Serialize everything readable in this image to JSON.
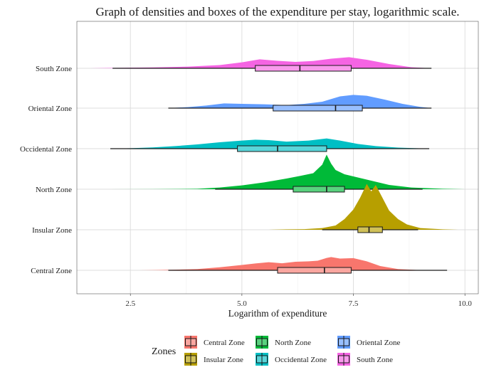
{
  "chart_data": {
    "type": "density-boxplot",
    "title": "Graph of densities and boxes of the expenditure  per stay, logarithmic scale.",
    "xlabel": "Logarithm of expenditure",
    "ylabel": "",
    "xlim": [
      1.3,
      10.3
    ],
    "x_ticks": [
      2.5,
      5.0,
      7.5,
      10.0
    ],
    "x_tick_labels": [
      "2.5",
      "5.0",
      "7.5",
      "10.0"
    ],
    "grid": true,
    "legend": {
      "title": "Zones",
      "position": "bottom",
      "entries": [
        "Central Zone",
        "Insular Zone",
        "North Zone",
        "Occidental Zone",
        "Oriental Zone",
        "South Zone"
      ]
    },
    "categories": [
      "Central Zone",
      "Insular Zone",
      "North Zone",
      "Occidental Zone",
      "Oriental Zone",
      "South Zone"
    ],
    "series": [
      {
        "name": "Central Zone",
        "color": "#F8766D",
        "box": {
          "whisker_low": 3.35,
          "q1": 5.8,
          "median": 6.85,
          "q3": 7.45,
          "whisker_high": 9.6
        },
        "density": [
          [
            2.7,
            0.0
          ],
          [
            3.0,
            0.01
          ],
          [
            3.5,
            0.03
          ],
          [
            4.0,
            0.06
          ],
          [
            4.5,
            0.14
          ],
          [
            5.0,
            0.25
          ],
          [
            5.3,
            0.32
          ],
          [
            5.6,
            0.38
          ],
          [
            5.9,
            0.33
          ],
          [
            6.2,
            0.4
          ],
          [
            6.5,
            0.42
          ],
          [
            6.7,
            0.45
          ],
          [
            6.9,
            0.58
          ],
          [
            7.0,
            0.62
          ],
          [
            7.2,
            0.55
          ],
          [
            7.5,
            0.57
          ],
          [
            7.8,
            0.42
          ],
          [
            8.1,
            0.2
          ],
          [
            8.5,
            0.06
          ],
          [
            9.0,
            0.01
          ],
          [
            9.6,
            0.0
          ]
        ]
      },
      {
        "name": "Insular Zone",
        "color": "#B79F00",
        "box": {
          "whisker_low": 6.8,
          "q1": 7.6,
          "median": 7.85,
          "q3": 8.15,
          "whisker_high": 8.95
        },
        "density": [
          [
            5.6,
            0.0
          ],
          [
            6.0,
            0.02
          ],
          [
            6.4,
            0.03
          ],
          [
            6.8,
            0.08
          ],
          [
            7.1,
            0.2
          ],
          [
            7.3,
            0.5
          ],
          [
            7.5,
            0.95
          ],
          [
            7.65,
            1.5
          ],
          [
            7.8,
            2.15
          ],
          [
            7.9,
            1.8
          ],
          [
            8.0,
            2.1
          ],
          [
            8.15,
            1.5
          ],
          [
            8.3,
            0.9
          ],
          [
            8.5,
            0.5
          ],
          [
            8.7,
            0.25
          ],
          [
            9.0,
            0.08
          ],
          [
            9.5,
            0.02
          ],
          [
            9.85,
            0.0
          ]
        ]
      },
      {
        "name": "North Zone",
        "color": "#00BA38",
        "box": {
          "whisker_low": 4.4,
          "q1": 6.15,
          "median": 6.9,
          "q3": 7.3,
          "whisker_high": 9.05
        },
        "density": [
          [
            2.0,
            0.0
          ],
          [
            3.0,
            0.005
          ],
          [
            4.0,
            0.02
          ],
          [
            4.5,
            0.08
          ],
          [
            5.0,
            0.18
          ],
          [
            5.5,
            0.32
          ],
          [
            6.0,
            0.5
          ],
          [
            6.3,
            0.62
          ],
          [
            6.6,
            0.75
          ],
          [
            6.8,
            1.15
          ],
          [
            6.9,
            1.62
          ],
          [
            7.0,
            1.2
          ],
          [
            7.1,
            0.9
          ],
          [
            7.3,
            0.7
          ],
          [
            7.6,
            0.55
          ],
          [
            7.9,
            0.4
          ],
          [
            8.3,
            0.2
          ],
          [
            8.8,
            0.08
          ],
          [
            9.5,
            0.02
          ],
          [
            10.0,
            0.0
          ]
        ]
      },
      {
        "name": "Occidental Zone",
        "color": "#00BFC4",
        "box": {
          "whisker_low": 2.05,
          "q1": 4.9,
          "median": 5.8,
          "q3": 6.9,
          "whisker_high": 9.2
        },
        "density": [
          [
            2.05,
            0.0
          ],
          [
            2.5,
            0.02
          ],
          [
            3.0,
            0.06
          ],
          [
            3.5,
            0.12
          ],
          [
            4.0,
            0.2
          ],
          [
            4.5,
            0.3
          ],
          [
            5.0,
            0.38
          ],
          [
            5.3,
            0.42
          ],
          [
            5.6,
            0.4
          ],
          [
            6.0,
            0.33
          ],
          [
            6.5,
            0.38
          ],
          [
            6.9,
            0.48
          ],
          [
            7.2,
            0.38
          ],
          [
            7.6,
            0.22
          ],
          [
            8.0,
            0.12
          ],
          [
            8.5,
            0.05
          ],
          [
            9.2,
            0.0
          ]
        ]
      },
      {
        "name": "Oriental Zone",
        "color": "#619CFF",
        "box": {
          "whisker_low": 3.35,
          "q1": 5.7,
          "median": 7.1,
          "q3": 7.7,
          "whisker_high": 9.25
        },
        "density": [
          [
            3.35,
            0.0
          ],
          [
            3.8,
            0.05
          ],
          [
            4.2,
            0.12
          ],
          [
            4.6,
            0.22
          ],
          [
            5.0,
            0.2
          ],
          [
            5.5,
            0.18
          ],
          [
            6.0,
            0.14
          ],
          [
            6.4,
            0.2
          ],
          [
            6.8,
            0.3
          ],
          [
            7.2,
            0.55
          ],
          [
            7.5,
            0.62
          ],
          [
            7.8,
            0.58
          ],
          [
            8.2,
            0.4
          ],
          [
            8.6,
            0.2
          ],
          [
            9.0,
            0.06
          ],
          [
            9.25,
            0.0
          ]
        ]
      },
      {
        "name": "South Zone",
        "color": "#F564E3",
        "box": {
          "whisker_low": 2.1,
          "q1": 5.3,
          "median": 6.3,
          "q3": 7.45,
          "whisker_high": 9.25
        },
        "density": [
          [
            1.6,
            0.0
          ],
          [
            2.2,
            0.02
          ],
          [
            3.0,
            0.04
          ],
          [
            3.8,
            0.08
          ],
          [
            4.5,
            0.15
          ],
          [
            5.0,
            0.28
          ],
          [
            5.4,
            0.42
          ],
          [
            5.8,
            0.35
          ],
          [
            6.2,
            0.3
          ],
          [
            6.6,
            0.34
          ],
          [
            7.0,
            0.45
          ],
          [
            7.4,
            0.52
          ],
          [
            7.8,
            0.4
          ],
          [
            8.3,
            0.2
          ],
          [
            8.8,
            0.05
          ],
          [
            9.25,
            0.0
          ]
        ]
      }
    ]
  }
}
